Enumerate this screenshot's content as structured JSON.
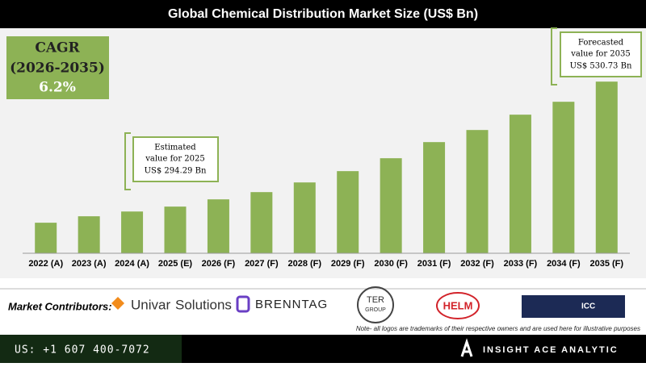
{
  "chart_data": {
    "type": "bar",
    "title": "Global Chemical Distribution Market Size (US$ Bn)",
    "categories": [
      "2022 (A)",
      "2023 (A)",
      "2024 (A)",
      "2025 (E)",
      "2026 (F)",
      "2027 (F)",
      "2028 (F)",
      "2029 (F)",
      "2030 (F)",
      "2031 (F)",
      "2032 (F)",
      "2033 (F)",
      "2034 (F)",
      "2035 (F)"
    ],
    "values": [
      263.8,
      276,
      285,
      294.29,
      308,
      321.7,
      340,
      361.4,
      385.8,
      416.3,
      439.2,
      468.2,
      492.6,
      530.73
    ],
    "color": "#8db255",
    "ylim": [
      206,
      560
    ],
    "annotations": {
      "cagr": [
        "CAGR",
        "(2026-2035)",
        "6.2%"
      ],
      "estimated": [
        "Estimated",
        "value for 2025",
        "US$ 294.29 Bn"
      ],
      "forecasted": [
        "Forecasted",
        "value for 2035",
        "US$ 530.73 Bn"
      ]
    }
  },
  "contributors": {
    "label": "Market Contributors:",
    "logos": [
      "Univar",
      "Solutions",
      "BRENNTAG",
      "TER",
      "GROUP",
      "HELM",
      "ICC"
    ],
    "note": "Note- all logos are trademarks of their respective owners and are used here for illustrative purposes"
  },
  "footer": {
    "phone": "US: +1 607 400-7072",
    "brand": "INSIGHT ACE ANALYTIC"
  }
}
